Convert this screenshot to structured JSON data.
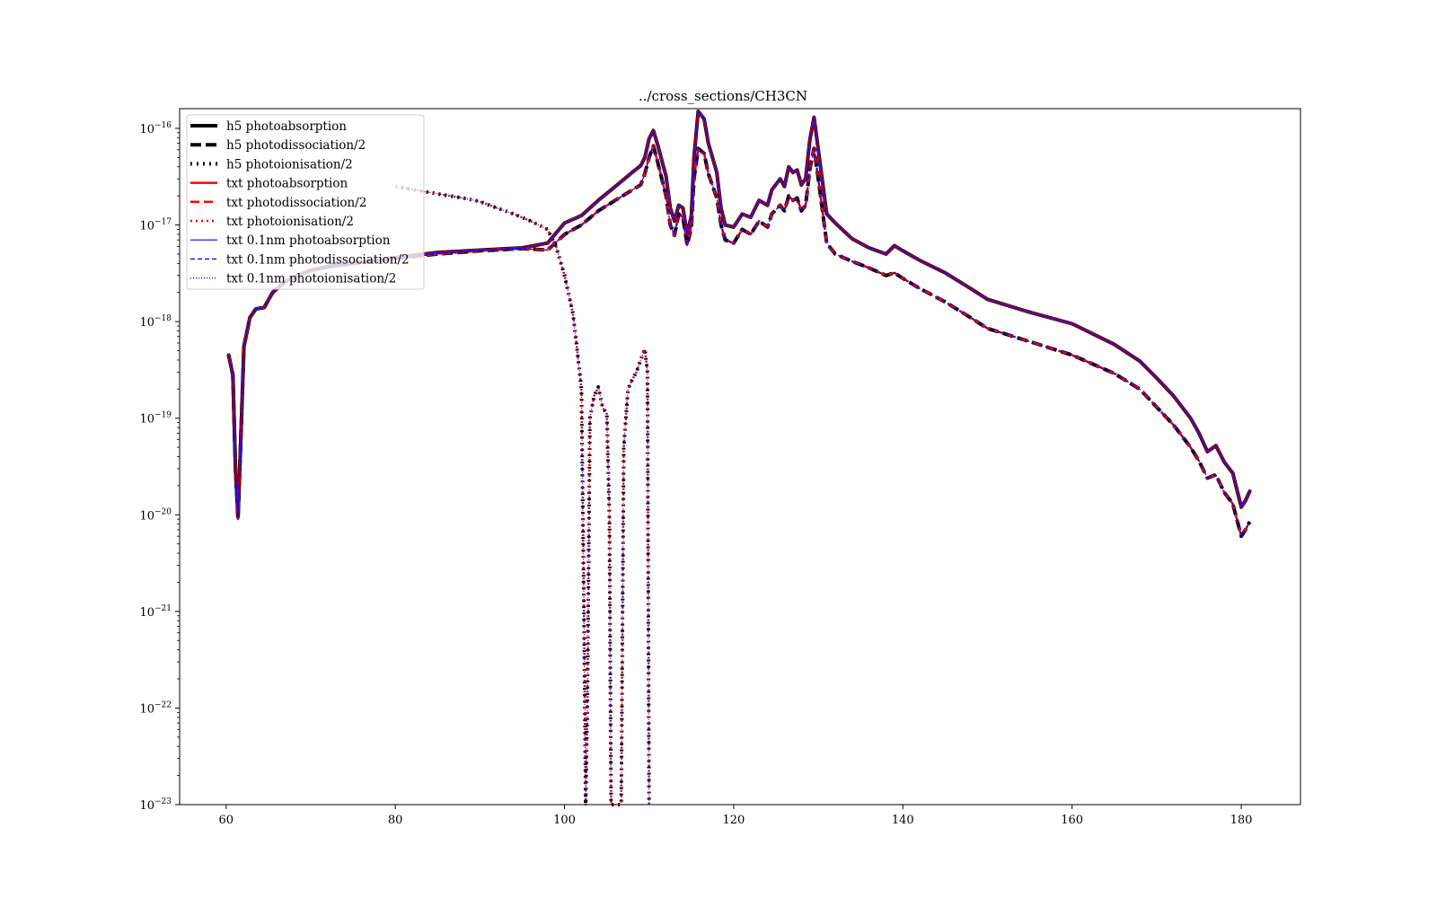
{
  "chart_data": {
    "type": "line",
    "title": "../cross_sections/CH3CN",
    "xlabel": "",
    "ylabel": "",
    "xlim": [
      54.5,
      187.0
    ],
    "ylim": [
      1e-23,
      1.6e-16
    ],
    "y_scale": "log",
    "grid": false,
    "legend_position": "top-left",
    "x_ticks": [
      {
        "value": 60,
        "label": "60"
      },
      {
        "value": 80,
        "label": "80"
      },
      {
        "value": 100,
        "label": "100"
      },
      {
        "value": 120,
        "label": "120"
      },
      {
        "value": 140,
        "label": "140"
      },
      {
        "value": 160,
        "label": "160"
      },
      {
        "value": 180,
        "label": "180"
      }
    ],
    "y_ticks": [
      {
        "value": 1e-16,
        "base": "10",
        "exp": "−16"
      },
      {
        "value": 1e-17,
        "base": "10",
        "exp": "−17"
      },
      {
        "value": 1e-18,
        "base": "10",
        "exp": "−18"
      },
      {
        "value": 1e-19,
        "base": "10",
        "exp": "−19"
      },
      {
        "value": 1e-20,
        "base": "10",
        "exp": "−20"
      },
      {
        "value": 1e-21,
        "base": "10",
        "exp": "−21"
      },
      {
        "value": 1e-22,
        "base": "10",
        "exp": "−22"
      },
      {
        "value": 1e-23,
        "base": "10",
        "exp": "−23"
      }
    ],
    "curves": {
      "photoabsorption": [
        [
          60.3,
          4.5e-19
        ],
        [
          60.8,
          2.8e-19
        ],
        [
          61.1,
          3e-20
        ],
        [
          61.4,
          9.5e-21
        ],
        [
          61.7,
          5e-20
        ],
        [
          62.1,
          5.5e-19
        ],
        [
          62.8,
          1.1e-18
        ],
        [
          63.5,
          1.35e-18
        ],
        [
          64.5,
          1.4e-18
        ],
        [
          65.5,
          2e-18
        ],
        [
          67,
          2.6e-18
        ],
        [
          68.5,
          3e-18
        ],
        [
          70,
          3.4e-18
        ],
        [
          72,
          3.7e-18
        ],
        [
          75,
          4e-18
        ],
        [
          80,
          4.6e-18
        ],
        [
          85,
          5.2e-18
        ],
        [
          90,
          5.5e-18
        ],
        [
          95,
          5.8e-18
        ],
        [
          98,
          6.5e-18
        ],
        [
          100,
          1.05e-17
        ],
        [
          102,
          1.25e-17
        ],
        [
          104,
          1.8e-17
        ],
        [
          106,
          2.5e-17
        ],
        [
          108,
          3.5e-17
        ],
        [
          109,
          4.1e-17
        ],
        [
          109.5,
          5e-17
        ],
        [
          110,
          7.8e-17
        ],
        [
          110.5,
          9.5e-17
        ],
        [
          111,
          6.8e-17
        ],
        [
          112,
          3.2e-17
        ],
        [
          112.5,
          1.5e-17
        ],
        [
          113,
          1.1e-17
        ],
        [
          113.5,
          1.6e-17
        ],
        [
          114,
          1.5e-17
        ],
        [
          114.5,
          8e-18
        ],
        [
          115,
          1.25e-17
        ],
        [
          115.3,
          5e-17
        ],
        [
          115.8,
          1.5e-16
        ],
        [
          116.5,
          1.25e-16
        ],
        [
          117,
          7e-17
        ],
        [
          118,
          3.5e-17
        ],
        [
          118.5,
          1.5e-17
        ],
        [
          119,
          1e-17
        ],
        [
          120,
          9.5e-18
        ],
        [
          121,
          1.3e-17
        ],
        [
          122,
          1.2e-17
        ],
        [
          123,
          1.8e-17
        ],
        [
          124,
          1.6e-17
        ],
        [
          124.5,
          2.3e-17
        ],
        [
          125.5,
          3e-17
        ],
        [
          126,
          2.5e-17
        ],
        [
          126.5,
          4e-17
        ],
        [
          127,
          3.5e-17
        ],
        [
          127.5,
          3.7e-17
        ],
        [
          128,
          2.6e-17
        ],
        [
          128.5,
          3e-17
        ],
        [
          129,
          7.6e-17
        ],
        [
          129.5,
          1.3e-16
        ],
        [
          130,
          6e-17
        ],
        [
          130.5,
          2.8e-17
        ],
        [
          131,
          1.3e-17
        ],
        [
          132,
          1.05e-17
        ],
        [
          134,
          7.2e-18
        ],
        [
          136,
          5.8e-18
        ],
        [
          138,
          5e-18
        ],
        [
          139,
          6.1e-18
        ],
        [
          140,
          5.4e-18
        ],
        [
          142,
          4.3e-18
        ],
        [
          145,
          3.2e-18
        ],
        [
          148,
          2.2e-18
        ],
        [
          150,
          1.7e-18
        ],
        [
          155,
          1.25e-18
        ],
        [
          160,
          9.5e-19
        ],
        [
          165,
          5.8e-19
        ],
        [
          168,
          3.9e-19
        ],
        [
          170,
          2.6e-19
        ],
        [
          172,
          1.7e-19
        ],
        [
          174,
          1e-19
        ],
        [
          175,
          7e-20
        ],
        [
          176,
          4.5e-20
        ],
        [
          177,
          5.2e-20
        ],
        [
          178,
          3.5e-20
        ],
        [
          179,
          2.7e-20
        ],
        [
          180,
          1.2e-20
        ],
        [
          180.5,
          1.4e-20
        ],
        [
          181,
          1.75e-20
        ]
      ],
      "photodissociation_half": [
        [
          60.3,
          4.5e-19
        ],
        [
          60.8,
          2.8e-19
        ],
        [
          61.1,
          3e-20
        ],
        [
          61.4,
          9e-21
        ],
        [
          61.7,
          5e-20
        ],
        [
          62.1,
          5.5e-19
        ],
        [
          62.8,
          1.1e-18
        ],
        [
          63.5,
          1.35e-18
        ],
        [
          64.5,
          1.4e-18
        ],
        [
          65.5,
          2e-18
        ],
        [
          67,
          2.6e-18
        ],
        [
          68.5,
          3e-18
        ],
        [
          70,
          3.4e-18
        ],
        [
          72,
          3.7e-18
        ],
        [
          75,
          4e-18
        ],
        [
          80,
          4.5e-18
        ],
        [
          85,
          5e-18
        ],
        [
          90,
          5.4e-18
        ],
        [
          95,
          5.7e-18
        ],
        [
          98,
          5.5e-18
        ],
        [
          100,
          8e-18
        ],
        [
          102,
          1e-17
        ],
        [
          104,
          1.4e-17
        ],
        [
          106,
          1.8e-17
        ],
        [
          108,
          2.3e-17
        ],
        [
          109,
          2.6e-17
        ],
        [
          109.5,
          3.4e-17
        ],
        [
          110,
          5e-17
        ],
        [
          110.5,
          6.6e-17
        ],
        [
          111,
          4.5e-17
        ],
        [
          112,
          2e-17
        ],
        [
          112.5,
          1e-17
        ],
        [
          113,
          7.8e-18
        ],
        [
          113.5,
          1.3e-17
        ],
        [
          114,
          1.2e-17
        ],
        [
          114.5,
          6.2e-18
        ],
        [
          115,
          9.5e-18
        ],
        [
          115.3,
          3e-17
        ],
        [
          115.8,
          6.2e-17
        ],
        [
          116.5,
          5.5e-17
        ],
        [
          117,
          3.4e-17
        ],
        [
          118,
          1.9e-17
        ],
        [
          118.5,
          1e-17
        ],
        [
          119,
          7e-18
        ],
        [
          120,
          6.5e-18
        ],
        [
          121,
          9e-18
        ],
        [
          122,
          8e-18
        ],
        [
          123,
          1.1e-17
        ],
        [
          124,
          9.5e-18
        ],
        [
          124.5,
          1.3e-17
        ],
        [
          125.5,
          1.6e-17
        ],
        [
          126,
          1.4e-17
        ],
        [
          126.5,
          2e-17
        ],
        [
          127,
          1.8e-17
        ],
        [
          127.5,
          1.9e-17
        ],
        [
          128,
          1.4e-17
        ],
        [
          128.5,
          1.6e-17
        ],
        [
          129,
          3.8e-17
        ],
        [
          129.5,
          6.2e-17
        ],
        [
          130,
          3e-17
        ],
        [
          130.5,
          1.4e-17
        ],
        [
          131,
          6.5e-18
        ],
        [
          132,
          5e-18
        ],
        [
          134,
          4.2e-18
        ],
        [
          136,
          3.6e-18
        ],
        [
          138,
          3e-18
        ],
        [
          139,
          3.2e-18
        ],
        [
          140,
          2.8e-18
        ],
        [
          142,
          2.2e-18
        ],
        [
          145,
          1.6e-18
        ],
        [
          148,
          1.1e-18
        ],
        [
          150,
          8.5e-19
        ],
        [
          155,
          6.2e-19
        ],
        [
          160,
          4.5e-19
        ],
        [
          165,
          2.9e-19
        ],
        [
          168,
          2e-19
        ],
        [
          170,
          1.3e-19
        ],
        [
          172,
          8.5e-20
        ],
        [
          174,
          5e-20
        ],
        [
          175,
          3.6e-20
        ],
        [
          176,
          2.4e-20
        ],
        [
          177,
          2.6e-20
        ],
        [
          178,
          1.7e-20
        ],
        [
          179,
          1.3e-20
        ],
        [
          180,
          6e-21
        ],
        [
          180.5,
          7e-21
        ],
        [
          181,
          8.5e-21
        ]
      ],
      "photoionisation_half": [
        [
          80,
          2.5e-17
        ],
        [
          85,
          2.1e-17
        ],
        [
          88,
          1.9e-17
        ],
        [
          90,
          1.75e-17
        ],
        [
          92,
          1.5e-17
        ],
        [
          94,
          1.3e-17
        ],
        [
          96,
          1.1e-17
        ],
        [
          98,
          9e-18
        ],
        [
          99,
          6e-18
        ],
        [
          100,
          3e-18
        ],
        [
          101,
          1.2e-18
        ],
        [
          101.5,
          5e-19
        ],
        [
          102,
          2e-19
        ],
        [
          102.3,
          1e-21
        ],
        [
          102.5,
          1e-23
        ],
        [
          102.7,
          1e-22
        ],
        [
          103,
          1e-19
        ],
        [
          103.5,
          1.7e-19
        ],
        [
          104,
          2.1e-19
        ],
        [
          104.5,
          1.3e-19
        ],
        [
          105,
          1.1e-19
        ],
        [
          105.3,
          1e-20
        ],
        [
          105.5,
          1e-23
        ],
        [
          106.7,
          1e-23
        ],
        [
          107,
          5e-20
        ],
        [
          107.5,
          2e-19
        ],
        [
          108,
          2.5e-19
        ],
        [
          108.5,
          3e-19
        ],
        [
          109,
          4e-19
        ],
        [
          109.5,
          5.2e-19
        ],
        [
          109.8,
          3e-19
        ],
        [
          110,
          1e-23
        ]
      ]
    },
    "series": [
      {
        "name": "h5 photoabsorption",
        "curve": "photoabsorption",
        "color": "#000000",
        "width": 4,
        "dash": ""
      },
      {
        "name": "h5 photodissociation/2",
        "curve": "photodissociation_half",
        "color": "#000000",
        "width": 4,
        "dash": "12,5"
      },
      {
        "name": "h5 photoionisation/2",
        "curve": "photoionisation_half",
        "color": "#000000",
        "width": 4,
        "dash": "2,5"
      },
      {
        "name": "txt photoabsorption",
        "curve": "photoabsorption",
        "color": "#ff0000",
        "width": 2.5,
        "dash": ""
      },
      {
        "name": "txt photodissociation/2",
        "curve": "photodissociation_half",
        "color": "#ff0000",
        "width": 2.5,
        "dash": "10,5"
      },
      {
        "name": "txt photoionisation/2",
        "curve": "photoionisation_half",
        "color": "#ff0000",
        "width": 2.5,
        "dash": "2,4"
      },
      {
        "name": "txt 0.1nm photoabsorption",
        "curve": "photoabsorption",
        "color": "#0000ff",
        "width": 1.2,
        "dash": ""
      },
      {
        "name": "txt 0.1nm photodissociation/2",
        "curve": "photodissociation_half",
        "color": "#0000ff",
        "width": 1.2,
        "dash": "5,3"
      },
      {
        "name": "txt 0.1nm photoionisation/2",
        "curve": "photoionisation_half",
        "color": "#0000ff",
        "width": 1.2,
        "dash": "1,2"
      }
    ]
  }
}
